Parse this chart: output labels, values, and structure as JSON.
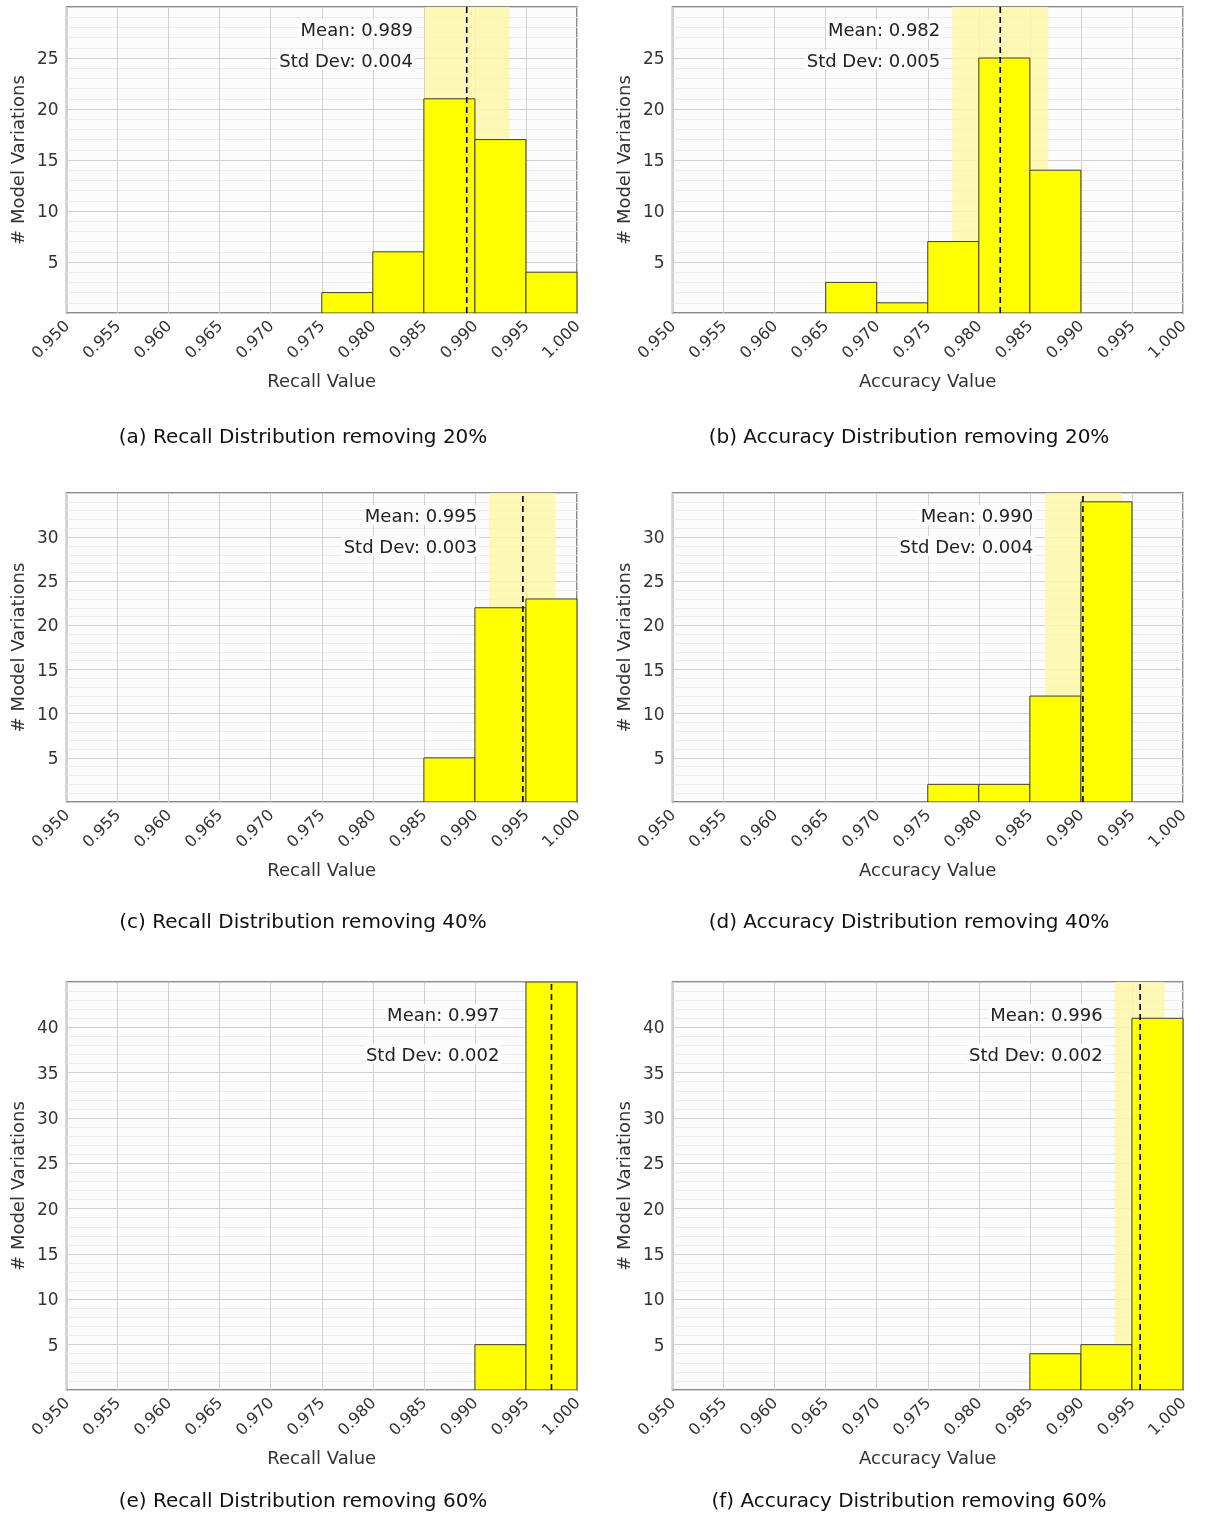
{
  "chart_data": [
    {
      "type": "histogram",
      "title": "(a) Recall Distribution removing 20%",
      "xlabel": "Recall Value",
      "ylabel": "# Model Variations",
      "annotations": [
        "Mean: 0.989",
        "Std Dev: 0.004"
      ],
      "bins": [
        0.975,
        0.98,
        0.985,
        0.99,
        0.995,
        1.0
      ],
      "values": [
        2,
        6,
        21,
        17,
        4
      ],
      "color": "#ffff00",
      "xlim": [
        0.95,
        1.0
      ],
      "xticks": [
        {
          "value": 0.95,
          "label": "0.950"
        },
        {
          "value": 0.955,
          "label": "0.955"
        },
        {
          "value": 0.96,
          "label": "0.960"
        },
        {
          "value": 0.965,
          "label": "0.965"
        },
        {
          "value": 0.97,
          "label": "0.970"
        },
        {
          "value": 0.975,
          "label": "0.975"
        },
        {
          "value": 0.98,
          "label": "0.980"
        },
        {
          "value": 0.985,
          "label": "0.985"
        },
        {
          "value": 0.99,
          "label": "0.990"
        },
        {
          "value": 0.995,
          "label": "0.995"
        },
        {
          "value": 1.0,
          "label": "1.000"
        }
      ],
      "ylim": [
        0,
        30
      ],
      "yticks": [
        5,
        10,
        15,
        20,
        25
      ],
      "grid": true,
      "ref_lines": [
        {
          "axis": "x",
          "value": 0.9892,
          "color": "#000000",
          "line_style": "dashed"
        }
      ],
      "bands": [
        {
          "axis": "x",
          "from": 0.9851,
          "to": 0.9934,
          "color": "#fdf7a8"
        }
      ]
    },
    {
      "type": "histogram",
      "title": "(b) Accuracy Distribution removing 20%",
      "xlabel": "Accuracy Value",
      "ylabel": "# Model Variations",
      "annotations": [
        "Mean: 0.982",
        "Std Dev: 0.005"
      ],
      "bins": [
        0.965,
        0.97,
        0.975,
        0.98,
        0.985,
        0.99
      ],
      "values": [
        3,
        1,
        7,
        25,
        14
      ],
      "color": "#ffff00",
      "xlim": [
        0.95,
        1.0
      ],
      "xticks": [
        {
          "value": 0.95,
          "label": "0.950"
        },
        {
          "value": 0.955,
          "label": "0.955"
        },
        {
          "value": 0.96,
          "label": "0.960"
        },
        {
          "value": 0.965,
          "label": "0.965"
        },
        {
          "value": 0.97,
          "label": "0.970"
        },
        {
          "value": 0.975,
          "label": "0.975"
        },
        {
          "value": 0.98,
          "label": "0.980"
        },
        {
          "value": 0.985,
          "label": "0.985"
        },
        {
          "value": 0.99,
          "label": "0.990"
        },
        {
          "value": 0.995,
          "label": "0.995"
        },
        {
          "value": 1.0,
          "label": "1.000"
        }
      ],
      "ylim": [
        0,
        30
      ],
      "yticks": [
        5,
        10,
        15,
        20,
        25
      ],
      "grid": true,
      "ref_lines": [
        {
          "axis": "x",
          "value": 0.9821,
          "color": "#000000",
          "line_style": "dashed"
        }
      ],
      "bands": [
        {
          "axis": "x",
          "from": 0.9774,
          "to": 0.9868,
          "color": "#fdf7a8"
        }
      ]
    },
    {
      "type": "histogram",
      "title": "(c) Recall Distribution removing 40%",
      "xlabel": "Recall Value",
      "ylabel": "# Model Variations",
      "annotations": [
        "Mean: 0.995",
        "Std Dev: 0.003"
      ],
      "bins": [
        0.985,
        0.99,
        0.995,
        1.0
      ],
      "values": [
        5,
        22,
        23
      ],
      "color": "#ffff00",
      "xlim": [
        0.95,
        1.0
      ],
      "xticks": [
        {
          "value": 0.95,
          "label": "0.950"
        },
        {
          "value": 0.955,
          "label": "0.955"
        },
        {
          "value": 0.96,
          "label": "0.960"
        },
        {
          "value": 0.965,
          "label": "0.965"
        },
        {
          "value": 0.97,
          "label": "0.970"
        },
        {
          "value": 0.975,
          "label": "0.975"
        },
        {
          "value": 0.98,
          "label": "0.980"
        },
        {
          "value": 0.985,
          "label": "0.985"
        },
        {
          "value": 0.99,
          "label": "0.990"
        },
        {
          "value": 0.995,
          "label": "0.995"
        },
        {
          "value": 1.0,
          "label": "1.000"
        }
      ],
      "ylim": [
        0,
        35
      ],
      "yticks": [
        5,
        10,
        15,
        20,
        25,
        30
      ],
      "grid": true,
      "ref_lines": [
        {
          "axis": "x",
          "value": 0.9947,
          "color": "#000000",
          "line_style": "dashed"
        }
      ],
      "bands": [
        {
          "axis": "x",
          "from": 0.9914,
          "to": 0.9979,
          "color": "#fdf7a8"
        }
      ]
    },
    {
      "type": "histogram",
      "title": "(d) Accuracy Distribution removing 40%",
      "xlabel": "Accuracy Value",
      "ylabel": "# Model Variations",
      "annotations": [
        "Mean: 0.990",
        "Std Dev: 0.004"
      ],
      "bins": [
        0.975,
        0.98,
        0.985,
        0.99,
        0.995
      ],
      "values": [
        2,
        2,
        12,
        34
      ],
      "color": "#ffff00",
      "xlim": [
        0.95,
        1.0
      ],
      "xticks": [
        {
          "value": 0.95,
          "label": "0.950"
        },
        {
          "value": 0.955,
          "label": "0.955"
        },
        {
          "value": 0.96,
          "label": "0.960"
        },
        {
          "value": 0.965,
          "label": "0.965"
        },
        {
          "value": 0.97,
          "label": "0.970"
        },
        {
          "value": 0.975,
          "label": "0.975"
        },
        {
          "value": 0.98,
          "label": "0.980"
        },
        {
          "value": 0.985,
          "label": "0.985"
        },
        {
          "value": 0.99,
          "label": "0.990"
        },
        {
          "value": 0.995,
          "label": "0.995"
        },
        {
          "value": 1.0,
          "label": "1.000"
        }
      ],
      "ylim": [
        0,
        35
      ],
      "yticks": [
        5,
        10,
        15,
        20,
        25,
        30
      ],
      "grid": true,
      "ref_lines": [
        {
          "axis": "x",
          "value": 0.9902,
          "color": "#000000",
          "line_style": "dashed"
        }
      ],
      "bands": [
        {
          "axis": "x",
          "from": 0.9865,
          "to": 0.994,
          "color": "#fdf7a8"
        }
      ]
    },
    {
      "type": "histogram",
      "title": "(e) Recall Distribution removing 60%",
      "xlabel": "Recall Value",
      "ylabel": "# Model Variations",
      "annotations": [
        "Mean: 0.997",
        "Std Dev: 0.002"
      ],
      "bins": [
        0.99,
        0.995,
        1.0
      ],
      "values": [
        5,
        45
      ],
      "color": "#ffff00",
      "xlim": [
        0.95,
        1.0
      ],
      "xticks": [
        {
          "value": 0.95,
          "label": "0.950"
        },
        {
          "value": 0.955,
          "label": "0.955"
        },
        {
          "value": 0.96,
          "label": "0.960"
        },
        {
          "value": 0.965,
          "label": "0.965"
        },
        {
          "value": 0.97,
          "label": "0.970"
        },
        {
          "value": 0.975,
          "label": "0.975"
        },
        {
          "value": 0.98,
          "label": "0.980"
        },
        {
          "value": 0.985,
          "label": "0.985"
        },
        {
          "value": 0.99,
          "label": "0.990"
        },
        {
          "value": 0.995,
          "label": "0.995"
        },
        {
          "value": 1.0,
          "label": "1.000"
        }
      ],
      "ylim": [
        0,
        45
      ],
      "yticks": [
        5,
        10,
        15,
        20,
        25,
        30,
        35,
        40
      ],
      "grid": true,
      "ref_lines": [
        {
          "axis": "x",
          "value": 0.9975,
          "color": "#000000",
          "line_style": "dashed"
        }
      ]
    },
    {
      "type": "histogram",
      "title": "(f) Accuracy Distribution removing 60%",
      "xlabel": "Accuracy Value",
      "ylabel": "# Model Variations",
      "annotations": [
        "Mean: 0.996",
        "Std Dev: 0.002"
      ],
      "bins": [
        0.985,
        0.99,
        0.995,
        1.0
      ],
      "values": [
        4,
        5,
        41
      ],
      "color": "#ffff00",
      "xlim": [
        0.95,
        1.0
      ],
      "xticks": [
        {
          "value": 0.95,
          "label": "0.950"
        },
        {
          "value": 0.955,
          "label": "0.955"
        },
        {
          "value": 0.96,
          "label": "0.960"
        },
        {
          "value": 0.965,
          "label": "0.965"
        },
        {
          "value": 0.97,
          "label": "0.970"
        },
        {
          "value": 0.975,
          "label": "0.975"
        },
        {
          "value": 0.98,
          "label": "0.980"
        },
        {
          "value": 0.985,
          "label": "0.985"
        },
        {
          "value": 0.99,
          "label": "0.990"
        },
        {
          "value": 0.995,
          "label": "0.995"
        },
        {
          "value": 1.0,
          "label": "1.000"
        }
      ],
      "ylim": [
        0,
        45
      ],
      "yticks": [
        5,
        10,
        15,
        20,
        25,
        30,
        35,
        40
      ],
      "grid": true,
      "ref_lines": [
        {
          "axis": "x",
          "value": 0.9958,
          "color": "#000000",
          "line_style": "dashed"
        }
      ],
      "bands": [
        {
          "axis": "x",
          "from": 0.9933,
          "to": 0.9982,
          "color": "#fdf7a8"
        }
      ]
    }
  ]
}
